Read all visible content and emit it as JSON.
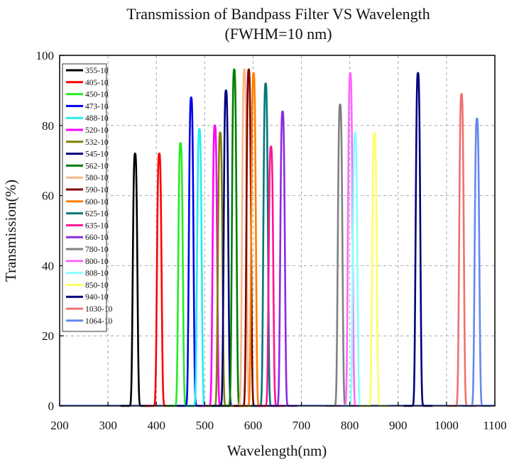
{
  "chart_data": {
    "type": "line",
    "title": "Transmission of Bandpass Filter VS Wavelength",
    "subtitle": "(FWHM=10 nm)",
    "xlabel": "Wavelength(nm)",
    "ylabel": "Transmission(%)",
    "xlim": [
      200,
      1100
    ],
    "ylim": [
      0,
      100
    ],
    "xticks": [
      200,
      300,
      400,
      500,
      600,
      700,
      800,
      900,
      1000,
      1100
    ],
    "yticks": [
      0,
      20,
      40,
      60,
      80,
      100
    ],
    "grid": true,
    "legend_position": "top-left",
    "series": [
      {
        "name": "355-10",
        "center": 356,
        "peak": 72,
        "color": "#000000"
      },
      {
        "name": "405-10",
        "center": 406,
        "peak": 72,
        "color": "#ff0000"
      },
      {
        "name": "450-10",
        "center": 450,
        "peak": 75,
        "color": "#22ee22"
      },
      {
        "name": "473-10",
        "center": 472,
        "peak": 88,
        "color": "#0000ee"
      },
      {
        "name": "488-10",
        "center": 489,
        "peak": 79,
        "color": "#22eeee"
      },
      {
        "name": "520-10",
        "center": 521,
        "peak": 80,
        "color": "#ff00ff"
      },
      {
        "name": "532-10",
        "center": 532,
        "peak": 78,
        "color": "#808000"
      },
      {
        "name": "545-10",
        "center": 544,
        "peak": 90,
        "color": "#000080"
      },
      {
        "name": "562-10",
        "center": 561,
        "peak": 96,
        "color": "#008000"
      },
      {
        "name": "580-10",
        "center": 582,
        "peak": 96,
        "color": "#f4b98e"
      },
      {
        "name": "590-10",
        "center": 591,
        "peak": 96,
        "color": "#800000"
      },
      {
        "name": "600-10",
        "center": 601,
        "peak": 95,
        "color": "#ff7f00"
      },
      {
        "name": "625-10",
        "center": 626,
        "peak": 92,
        "color": "#007878"
      },
      {
        "name": "635-10",
        "center": 637,
        "peak": 74,
        "color": "#ff1493"
      },
      {
        "name": "660-10",
        "center": 661,
        "peak": 84,
        "color": "#8a2be2"
      },
      {
        "name": "780-10",
        "center": 780,
        "peak": 86,
        "color": "#808080"
      },
      {
        "name": "800-10",
        "center": 801,
        "peak": 95,
        "color": "#ff66ff"
      },
      {
        "name": "808-10",
        "center": 811,
        "peak": 78,
        "color": "#88ffff"
      },
      {
        "name": "850-10",
        "center": 851,
        "peak": 78,
        "color": "#ffff66"
      },
      {
        "name": "940-10",
        "center": 941,
        "peak": 95,
        "color": "#000080"
      },
      {
        "name": "1030-10",
        "center": 1031,
        "peak": 89,
        "color": "#f07070"
      },
      {
        "name": "1064-10",
        "center": 1063,
        "peak": 82,
        "color": "#6688ee"
      }
    ]
  }
}
